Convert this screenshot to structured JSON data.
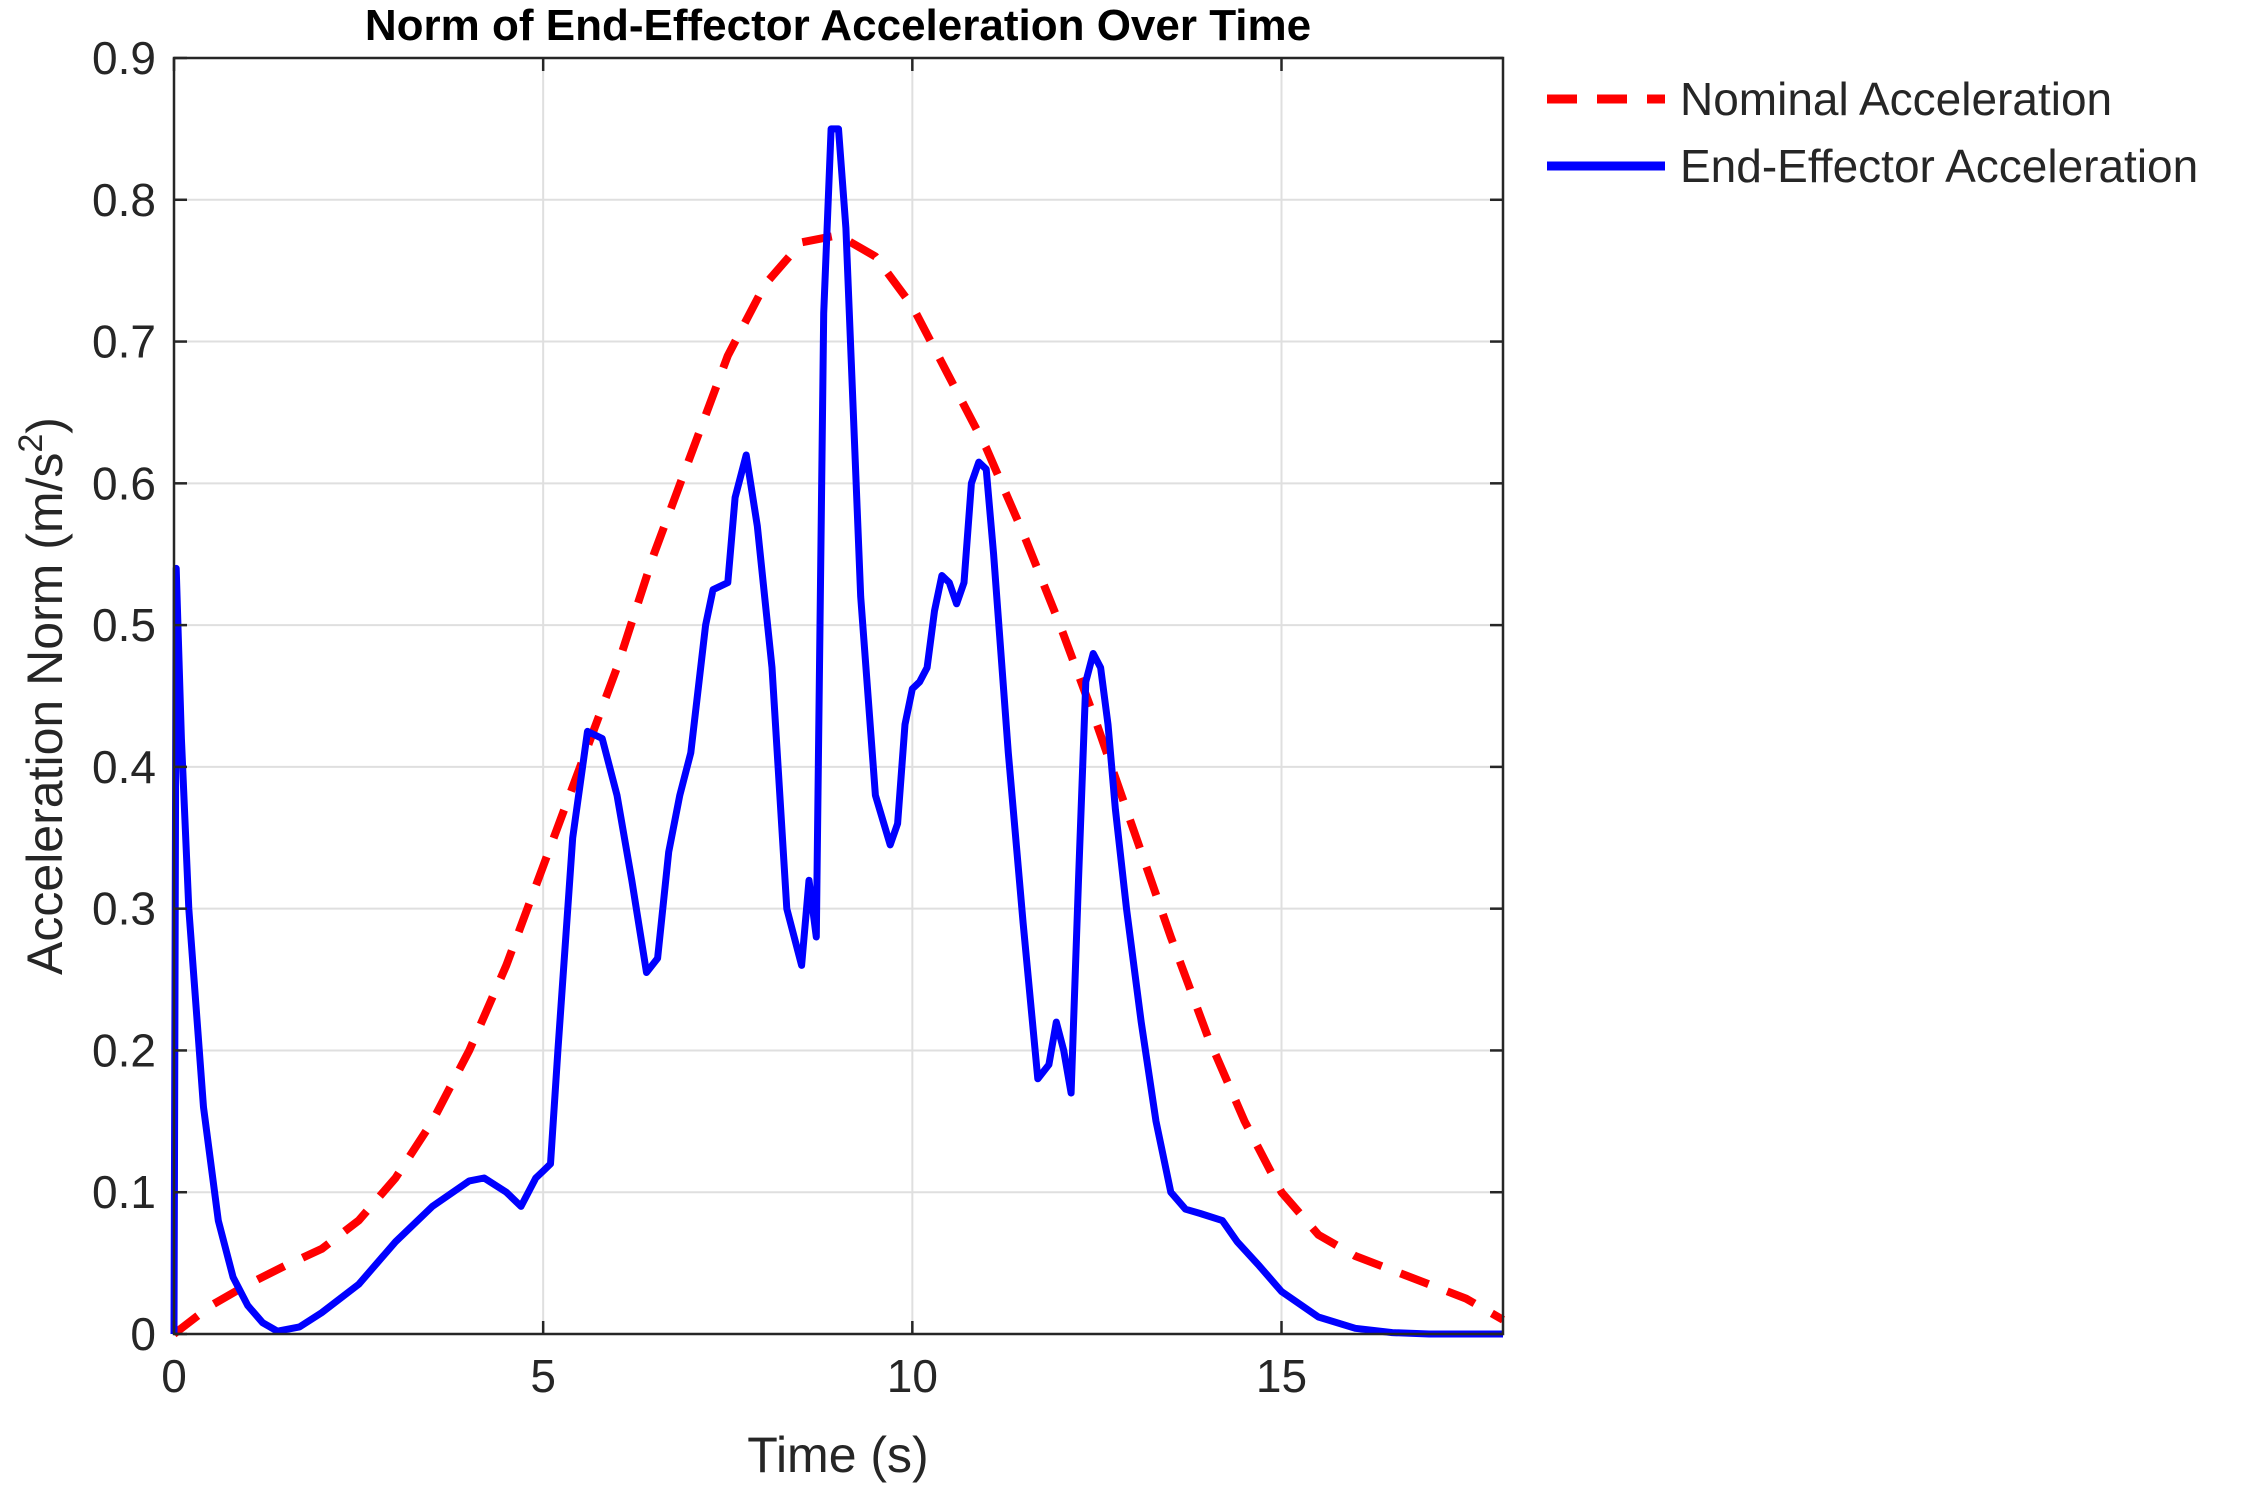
{
  "chart_data": {
    "type": "line",
    "title": "Norm of End-Effector Acceleration Over Time",
    "xlabel": "Time (s)",
    "ylabel": "Acceleration Norm (m/s",
    "ylabel_sup": "2",
    "ylabel_close": ")",
    "xlim": [
      0,
      18
    ],
    "ylim": [
      0,
      0.9
    ],
    "xticks": [
      "0",
      "5",
      "10",
      "15"
    ],
    "yticks": [
      "0",
      "0.1",
      "0.2",
      "0.3",
      "0.4",
      "0.5",
      "0.6",
      "0.7",
      "0.8",
      "0.9"
    ],
    "grid": true,
    "legend_placement": "outside-top-right",
    "series": [
      {
        "name": "Nominal Acceleration",
        "color": "#ff0000",
        "style": "dashed",
        "x": [
          0,
          0.5,
          1,
          1.5,
          2,
          2.5,
          3,
          3.5,
          4,
          4.5,
          5,
          5.5,
          6,
          6.5,
          7,
          7.5,
          8,
          8.5,
          9,
          9.5,
          10,
          10.5,
          11,
          11.5,
          12,
          12.5,
          13,
          13.5,
          14,
          14.5,
          15,
          15.5,
          16,
          16.5,
          17,
          17.5,
          18
        ],
        "y": [
          0,
          0.02,
          0.035,
          0.048,
          0.06,
          0.08,
          0.11,
          0.15,
          0.2,
          0.26,
          0.33,
          0.4,
          0.47,
          0.55,
          0.62,
          0.69,
          0.74,
          0.77,
          0.775,
          0.76,
          0.725,
          0.675,
          0.625,
          0.565,
          0.5,
          0.43,
          0.355,
          0.28,
          0.21,
          0.15,
          0.1,
          0.07,
          0.055,
          0.045,
          0.035,
          0.025,
          0.01
        ]
      },
      {
        "name": "End-Effector Acceleration",
        "color": "#0000ff",
        "style": "solid",
        "x": [
          0,
          0.03,
          0.1,
          0.2,
          0.4,
          0.6,
          0.8,
          1.0,
          1.2,
          1.4,
          1.7,
          2.0,
          2.5,
          3.0,
          3.5,
          4.0,
          4.2,
          4.5,
          4.7,
          4.9,
          5.0,
          5.1,
          5.2,
          5.4,
          5.6,
          5.8,
          6.0,
          6.2,
          6.4,
          6.55,
          6.7,
          6.85,
          7.0,
          7.2,
          7.3,
          7.5,
          7.6,
          7.75,
          7.9,
          8.1,
          8.3,
          8.5,
          8.6,
          8.7,
          8.8,
          8.9,
          9.0,
          9.1,
          9.2,
          9.3,
          9.5,
          9.7,
          9.8,
          9.9,
          10.0,
          10.1,
          10.2,
          10.3,
          10.4,
          10.5,
          10.6,
          10.7,
          10.8,
          10.9,
          11.0,
          11.1,
          11.3,
          11.5,
          11.7,
          11.85,
          11.95,
          12.05,
          12.15,
          12.25,
          12.35,
          12.45,
          12.55,
          12.65,
          12.75,
          12.9,
          13.1,
          13.3,
          13.5,
          13.7,
          13.9,
          14.2,
          14.4,
          14.7,
          15.0,
          15.5,
          16.0,
          16.5,
          17.0,
          17.5,
          18.0
        ],
        "y": [
          0,
          0.54,
          0.42,
          0.3,
          0.16,
          0.08,
          0.04,
          0.02,
          0.008,
          0.002,
          0.005,
          0.015,
          0.035,
          0.065,
          0.09,
          0.108,
          0.11,
          0.1,
          0.09,
          0.11,
          0.115,
          0.12,
          0.2,
          0.35,
          0.425,
          0.42,
          0.38,
          0.32,
          0.255,
          0.265,
          0.34,
          0.38,
          0.41,
          0.5,
          0.525,
          0.53,
          0.59,
          0.62,
          0.57,
          0.47,
          0.3,
          0.26,
          0.32,
          0.28,
          0.72,
          0.85,
          0.85,
          0.78,
          0.65,
          0.52,
          0.38,
          0.345,
          0.36,
          0.43,
          0.455,
          0.46,
          0.47,
          0.51,
          0.535,
          0.53,
          0.515,
          0.53,
          0.6,
          0.615,
          0.61,
          0.55,
          0.41,
          0.29,
          0.18,
          0.19,
          0.22,
          0.2,
          0.17,
          0.32,
          0.46,
          0.48,
          0.47,
          0.43,
          0.37,
          0.3,
          0.22,
          0.15,
          0.1,
          0.088,
          0.085,
          0.08,
          0.065,
          0.048,
          0.03,
          0.012,
          0.004,
          0.001,
          0,
          0,
          0
        ]
      }
    ]
  }
}
